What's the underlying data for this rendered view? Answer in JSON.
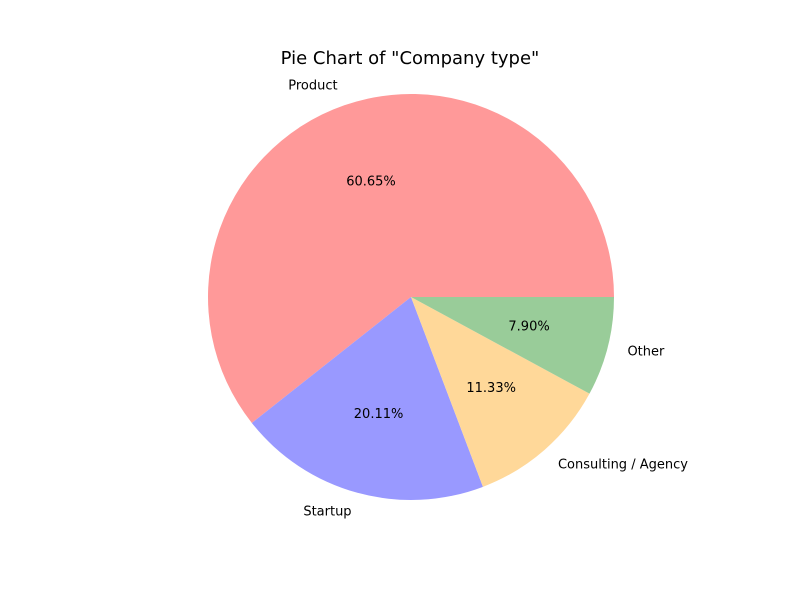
{
  "chart_data": {
    "type": "pie",
    "title": "Pie Chart of \"Company type\"",
    "slices": [
      {
        "label": "Product",
        "value": 60.65,
        "pct_label": "60.65%",
        "color": "#ff9999"
      },
      {
        "label": "Startup",
        "value": 20.11,
        "pct_label": "20.11%",
        "color": "#9999ff"
      },
      {
        "label": "Consulting / Agency",
        "value": 11.33,
        "pct_label": "11.33%",
        "color": "#ffd899"
      },
      {
        "label": "Other",
        "value": 7.9,
        "pct_label": "7.90%",
        "color": "#99cc99"
      }
    ],
    "start_angle_deg": 0,
    "direction": "counterclockwise"
  }
}
